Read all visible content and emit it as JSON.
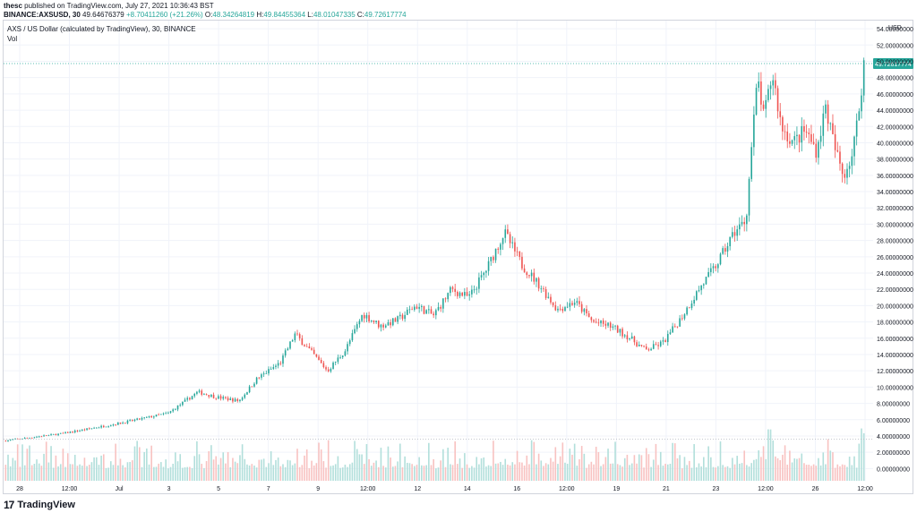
{
  "header": {
    "publisher": "thesc",
    "published_text": "published on TradingView.com, July 27, 2021 10:36:43 BST",
    "symbol": "BINANCE:AXSUSD, 30",
    "last": "49.64676379",
    "change": "+8.70411260 (+21.26%)",
    "ohlc_o_label": "O:",
    "ohlc_o": "48.34264819",
    "ohlc_h_label": "H:",
    "ohlc_h": "49.84455364",
    "ohlc_l_label": "L:",
    "ohlc_l": "48.01047335",
    "ohlc_c_label": "C:",
    "ohlc_c": "49.72617774"
  },
  "legend": {
    "title": "AXS / US Dollar (calculated by TradingView), 30, BINANCE",
    "volume": "Vol"
  },
  "footer": {
    "brand": "TradingView",
    "logo_mark": "17"
  },
  "colors": {
    "up": "#26a69a",
    "down": "#ef5350",
    "up_volume": "#b2dfdb",
    "down_volume": "#f8c2c1",
    "grid": "#f0f3fa",
    "axis_text": "#131722",
    "price_line": "#26a69a"
  },
  "chart_data": {
    "type": "candlestick",
    "title": "AXS / US Dollar (calculated by TradingView), 30, BINANCE",
    "price_axis_label": "USD",
    "ylim": [
      -1.5,
      55
    ],
    "y_ticks": [
      "54.00000000",
      "52.00000000",
      "50.00000000",
      "48.00000000",
      "46.00000000",
      "44.00000000",
      "42.00000000",
      "40.00000000",
      "38.00000000",
      "36.00000000",
      "34.00000000",
      "32.00000000",
      "30.00000000",
      "28.00000000",
      "26.00000000",
      "24.00000000",
      "22.00000000",
      "20.00000000",
      "18.00000000",
      "16.00000000",
      "14.00000000",
      "12.00000000",
      "10.00000000",
      "8.00000000",
      "6.00000000",
      "4.00000000",
      "2.00000000",
      "0.00000000"
    ],
    "y_tick_values": [
      54,
      52,
      50,
      48,
      46,
      44,
      42,
      40,
      38,
      36,
      34,
      32,
      30,
      28,
      26,
      24,
      22,
      20,
      18,
      16,
      14,
      12,
      10,
      8,
      6,
      4,
      2,
      0
    ],
    "x_ticks": [
      "28",
      "12:00",
      "Jul",
      "3",
      "5",
      "7",
      "9",
      "12:00",
      "12",
      "14",
      "16",
      "12:00",
      "19",
      "21",
      "23",
      "12:00",
      "26",
      "12:00"
    ],
    "last_price_label": "49.72617774",
    "last_price": 49.72617774,
    "volume_avg_level": 3.6,
    "key_points": [
      {
        "t": 0,
        "price": 3.4
      },
      {
        "t": 10,
        "price": 4.3
      },
      {
        "t": 20,
        "price": 5.6
      },
      {
        "t": 28,
        "price": 6.8
      },
      {
        "t": 33,
        "price": 9.4
      },
      {
        "t": 36,
        "price": 8.8
      },
      {
        "t": 40,
        "price": 8.3
      },
      {
        "t": 43,
        "price": 11.0
      },
      {
        "t": 47,
        "price": 13.0
      },
      {
        "t": 49.5,
        "price": 16.5
      },
      {
        "t": 52,
        "price": 14.5
      },
      {
        "t": 55,
        "price": 12.0
      },
      {
        "t": 58,
        "price": 14.5
      },
      {
        "t": 61,
        "price": 19.0
      },
      {
        "t": 64,
        "price": 17.5
      },
      {
        "t": 67,
        "price": 18.3
      },
      {
        "t": 70,
        "price": 20.0
      },
      {
        "t": 73,
        "price": 18.8
      },
      {
        "t": 76,
        "price": 22.0
      },
      {
        "t": 79,
        "price": 21.0
      },
      {
        "t": 82,
        "price": 24.5
      },
      {
        "t": 85,
        "price": 29.0
      },
      {
        "t": 88,
        "price": 25.0
      },
      {
        "t": 91,
        "price": 22.5
      },
      {
        "t": 94,
        "price": 19.5
      },
      {
        "t": 97,
        "price": 20.5
      },
      {
        "t": 100,
        "price": 18.0
      },
      {
        "t": 103,
        "price": 17.5
      },
      {
        "t": 106,
        "price": 16.2
      },
      {
        "t": 109,
        "price": 14.5
      },
      {
        "t": 112,
        "price": 15.5
      },
      {
        "t": 115,
        "price": 18.5
      },
      {
        "t": 118,
        "price": 22.0
      },
      {
        "t": 121,
        "price": 25.0
      },
      {
        "t": 124,
        "price": 29.0
      },
      {
        "t": 126,
        "price": 30.5
      },
      {
        "t": 127,
        "price": 40.0
      },
      {
        "t": 128,
        "price": 48.0
      },
      {
        "t": 129,
        "price": 43.0
      },
      {
        "t": 130.5,
        "price": 48.5
      },
      {
        "t": 132,
        "price": 42.0
      },
      {
        "t": 134,
        "price": 40.0
      },
      {
        "t": 136,
        "price": 41.5
      },
      {
        "t": 138,
        "price": 39.0
      },
      {
        "t": 139.5,
        "price": 44.5
      },
      {
        "t": 141,
        "price": 39.5
      },
      {
        "t": 142.5,
        "price": 36.0
      },
      {
        "t": 144,
        "price": 38.5
      },
      {
        "t": 145,
        "price": 43.0
      },
      {
        "t": 146,
        "price": 49.7
      }
    ]
  }
}
